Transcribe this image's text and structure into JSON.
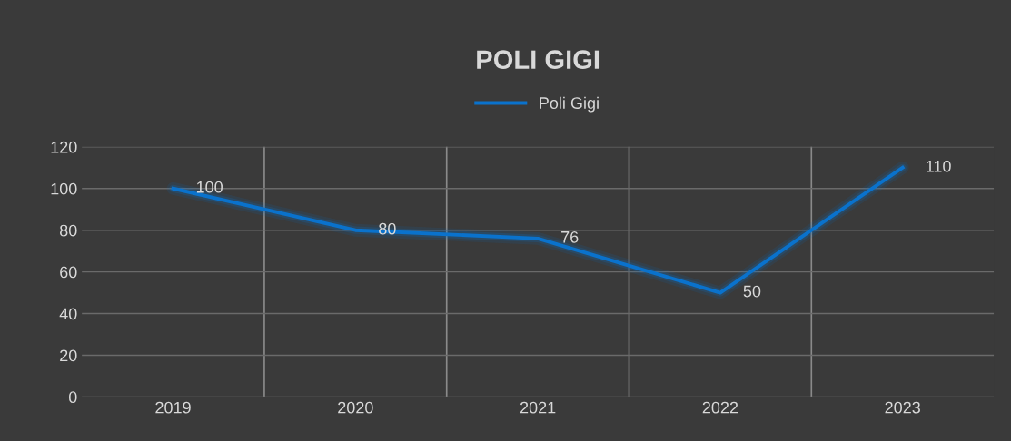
{
  "chart_data": {
    "type": "line",
    "title": "POLI GIGI",
    "categories": [
      "2019",
      "2020",
      "2021",
      "2022",
      "2023"
    ],
    "series": [
      {
        "name": "Poli Gigi",
        "color": "#0a72cc",
        "values": [
          100,
          80,
          76,
          50,
          110
        ]
      }
    ],
    "ylim": [
      0,
      120
    ],
    "yticks": [
      0,
      20,
      40,
      60,
      80,
      100,
      120
    ],
    "grid": true,
    "legend": "top",
    "data_labels": true,
    "marker": "none",
    "line_style": "solid"
  }
}
